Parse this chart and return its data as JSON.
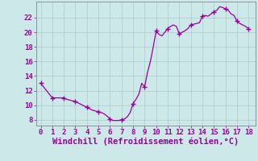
{
  "x_values": [
    0,
    0.25,
    0.5,
    0.75,
    1,
    1.25,
    1.5,
    1.75,
    2,
    2.25,
    2.5,
    2.75,
    3,
    3.25,
    3.5,
    3.75,
    4,
    4.25,
    4.5,
    4.75,
    5,
    5.25,
    5.5,
    5.75,
    6,
    6.25,
    6.5,
    6.75,
    7,
    7.25,
    7.5,
    7.75,
    8,
    8.25,
    8.5,
    8.75,
    9,
    9.25,
    9.5,
    9.75,
    10,
    10.25,
    10.5,
    10.75,
    11,
    11.25,
    11.5,
    11.75,
    12,
    12.25,
    12.5,
    12.75,
    13,
    13.25,
    13.5,
    13.75,
    14,
    14.25,
    14.5,
    14.75,
    15,
    15.25,
    15.5,
    15.75,
    16,
    16.25,
    16.5,
    16.75,
    17,
    17.25,
    17.5,
    17.75,
    18
  ],
  "y_values": [
    13.0,
    12.5,
    12.0,
    11.5,
    11.0,
    11.0,
    11.0,
    11.0,
    11.0,
    10.8,
    10.7,
    10.6,
    10.5,
    10.3,
    10.1,
    9.9,
    9.7,
    9.5,
    9.3,
    9.2,
    9.1,
    9.0,
    8.8,
    8.5,
    8.1,
    7.9,
    7.9,
    7.9,
    8.0,
    8.1,
    8.4,
    9.0,
    10.2,
    10.8,
    11.5,
    13.0,
    12.5,
    14.5,
    16.0,
    18.0,
    20.2,
    19.7,
    19.5,
    20.0,
    20.5,
    20.8,
    21.0,
    20.8,
    19.8,
    20.0,
    20.2,
    20.5,
    21.0,
    21.1,
    21.2,
    21.3,
    22.2,
    22.3,
    22.2,
    22.5,
    22.8,
    23.0,
    23.5,
    23.4,
    23.2,
    23.0,
    22.5,
    22.3,
    21.5,
    21.2,
    21.0,
    20.8,
    20.5
  ],
  "marker_x": [
    0,
    1,
    2,
    3,
    4,
    5,
    6,
    7,
    8,
    9,
    10,
    11,
    12,
    13,
    14,
    15,
    16,
    17,
    18
  ],
  "marker_y": [
    13.0,
    11.0,
    11.0,
    10.5,
    9.7,
    9.1,
    8.1,
    8.0,
    10.2,
    12.5,
    20.2,
    20.5,
    19.8,
    21.0,
    22.2,
    22.8,
    23.2,
    21.5,
    20.5
  ],
  "line_color": "#990099",
  "marker_color": "#990099",
  "bg_color": "#cce8e8",
  "grid_color": "#aacccc",
  "axis_color": "#888888",
  "xlabel": "Windchill (Refroidissement éolien,°C)",
  "xlabel_color": "#990099",
  "xlabel_fontsize": 7.5,
  "tick_color": "#990099",
  "tick_fontsize": 6.5,
  "ytick_values": [
    8,
    10,
    12,
    14,
    16,
    18,
    20,
    22
  ],
  "xtick_values": [
    0,
    1,
    2,
    3,
    4,
    5,
    6,
    7,
    8,
    9,
    10,
    11,
    12,
    13,
    14,
    15,
    16,
    17,
    18
  ],
  "xlim": [
    -0.4,
    18.6
  ],
  "ylim": [
    7.2,
    24.2
  ],
  "grid_linewidth": 0.5,
  "line_linewidth": 0.9
}
